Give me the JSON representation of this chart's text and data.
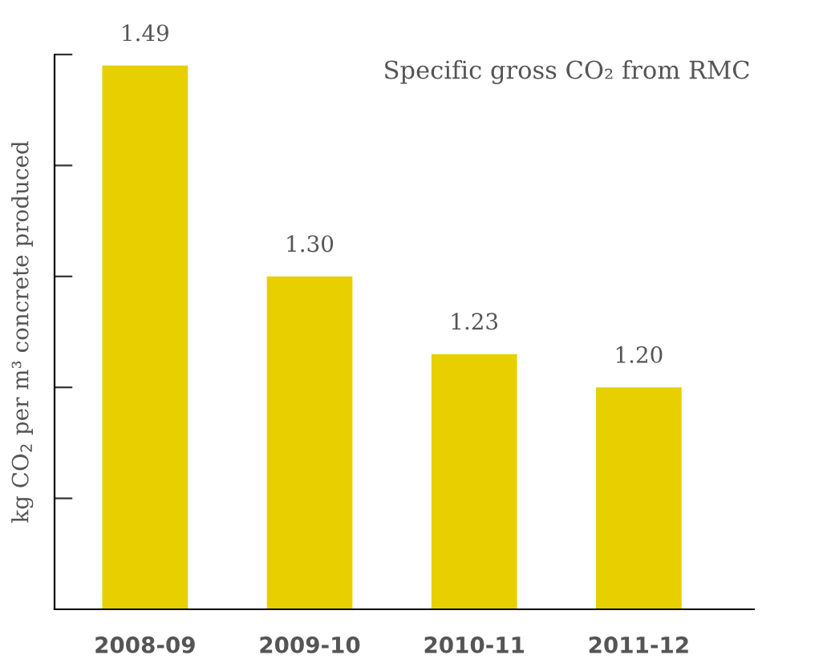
{
  "chart_data": {
    "type": "bar",
    "title": "Specific gross CO₂ from RMC",
    "ylabel": "kg CO$_{2}$ per m³ concrete produced",
    "categories": [
      "2008-09",
      "2009-10",
      "2010-11",
      "2011-12"
    ],
    "values": [
      1.49,
      1.3,
      1.23,
      1.2
    ],
    "color": "#e8cf00",
    "value_labels": [
      "1.49",
      "1.30",
      "1.23",
      "1.20"
    ],
    "ylim": [
      1.0,
      1.5
    ],
    "yticks": [
      {
        "value": 1.1,
        "label": null
      },
      {
        "value": 1.2,
        "label": null
      },
      {
        "value": 1.3,
        "label": null
      },
      {
        "value": 1.4,
        "label": null
      },
      {
        "value": 1.5,
        "label": null
      }
    ],
    "grid": false,
    "legend": false
  }
}
